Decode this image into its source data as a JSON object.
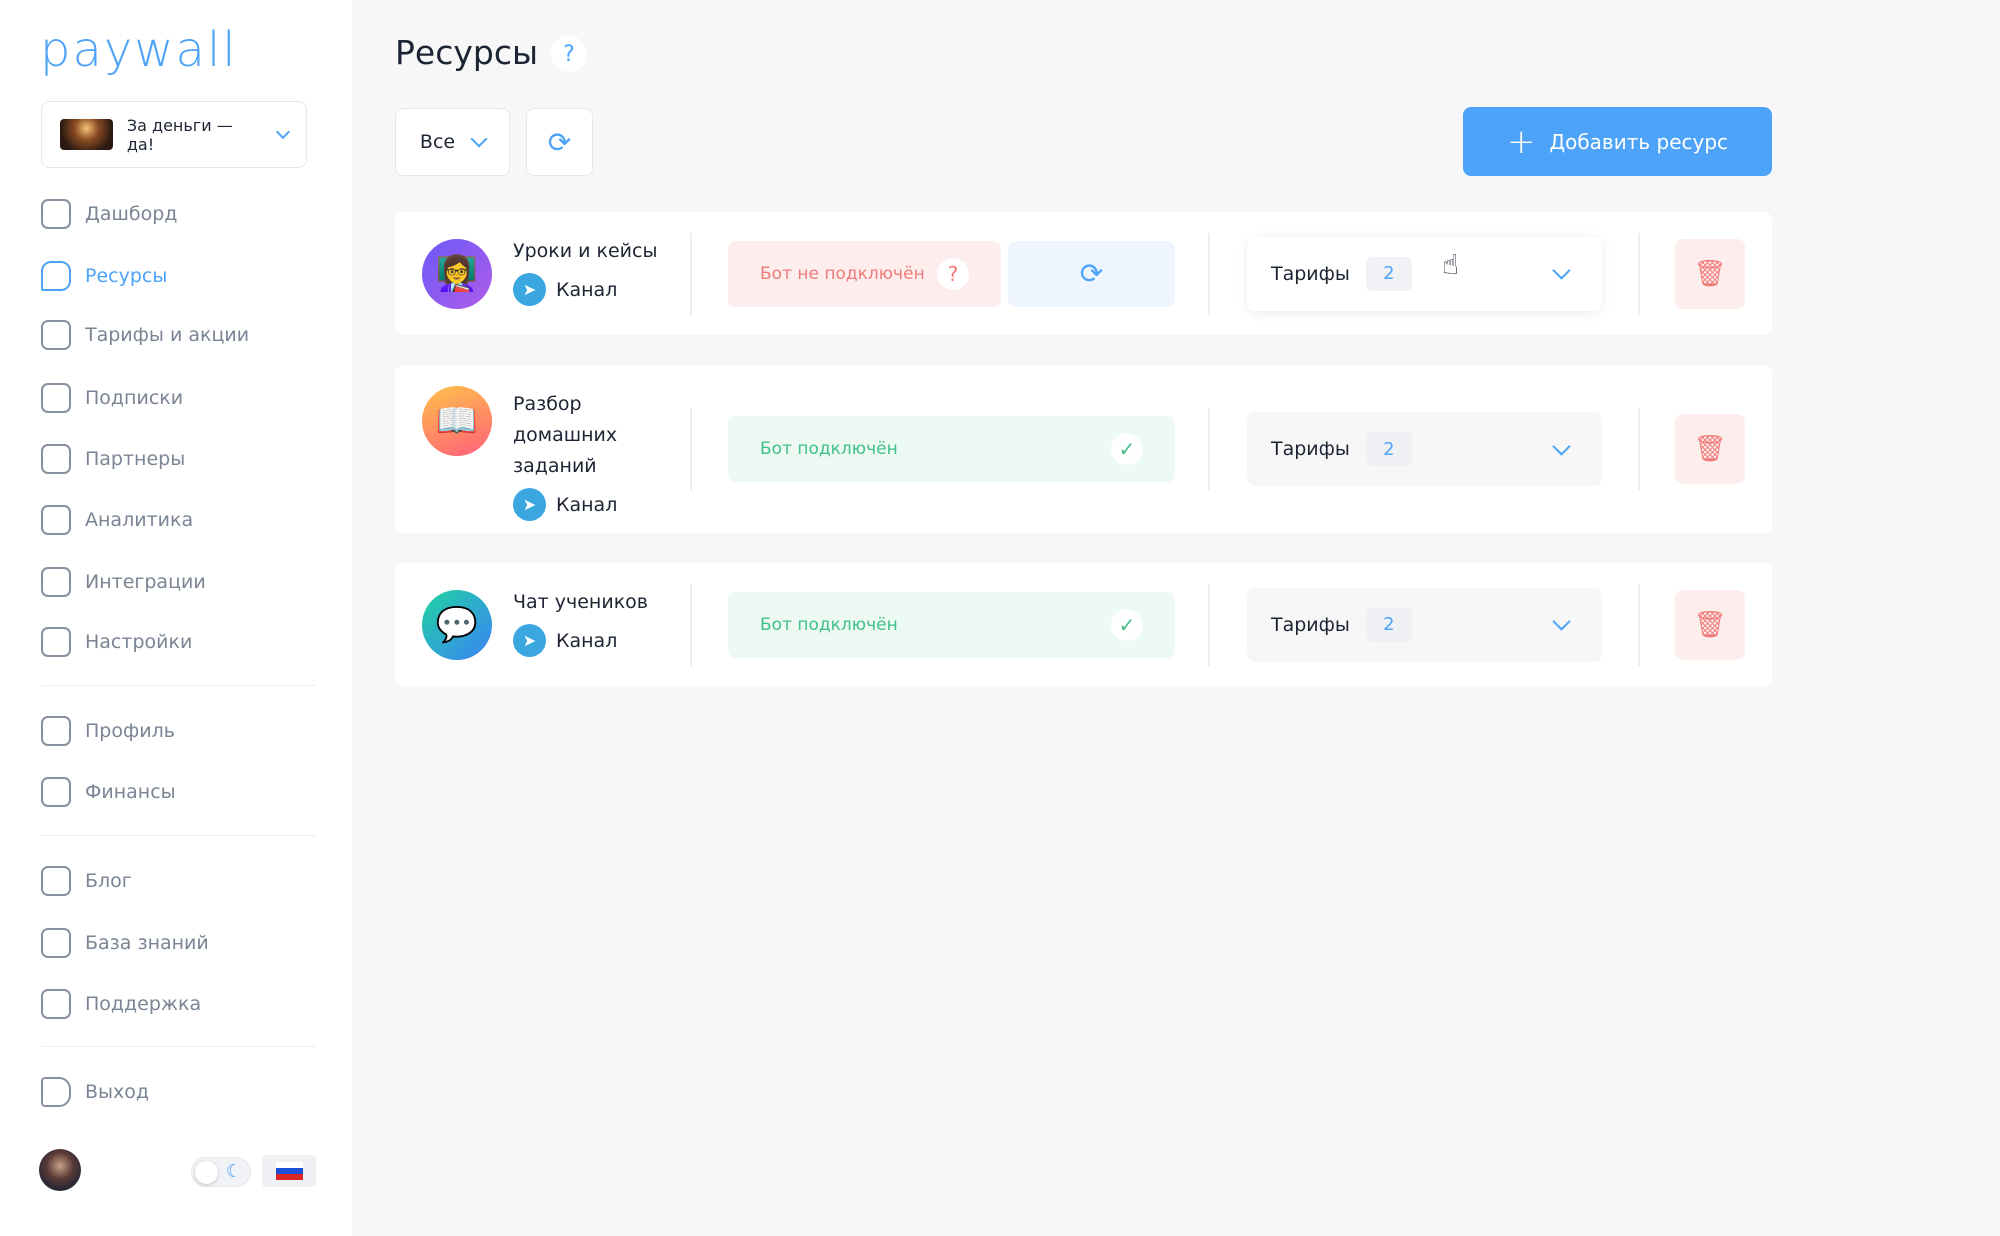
{
  "sidebar": {
    "logo": "paywall",
    "project": {
      "name": "За деньги — да!"
    },
    "nav": [
      {
        "label": "Дашборд",
        "icon": "dashboard-icon",
        "active": false
      },
      {
        "label": "Ресурсы",
        "icon": "chat-icon",
        "active": true
      },
      {
        "label": "Тарифы и акции",
        "icon": "tariff-icon",
        "active": false
      },
      {
        "label": "Подписки",
        "icon": "user-check-icon",
        "active": false
      },
      {
        "label": "Партнеры",
        "icon": "briefcase-icon",
        "active": false
      },
      {
        "label": "Аналитика",
        "icon": "chart-icon",
        "active": false
      },
      {
        "label": "Интеграции",
        "icon": "puzzle-icon",
        "active": false
      },
      {
        "label": "Настройки",
        "icon": "gear-icon",
        "active": false
      }
    ],
    "nav2": [
      {
        "label": "Профиль",
        "icon": "profile-icon"
      },
      {
        "label": "Финансы",
        "icon": "wallet-icon"
      }
    ],
    "nav3": [
      {
        "label": "Блог",
        "icon": "blog-icon"
      },
      {
        "label": "База знаний",
        "icon": "graduation-icon"
      },
      {
        "label": "Поддержка",
        "icon": "headset-icon"
      }
    ],
    "logout": "Выход",
    "language": "ru"
  },
  "header": {
    "title": "Ресурсы",
    "help": "?"
  },
  "toolbar": {
    "filter": "Все",
    "add_label": "Добавить ресурс"
  },
  "accent": "#4da3f7",
  "resources": [
    {
      "name": "Уроки и кейсы",
      "type": "Канал",
      "emoji": "👩‍🏫",
      "status": "Бот не подключён",
      "connected": false,
      "tariffs_label": "Тарифы",
      "tariffs_count": "2"
    },
    {
      "name": "Разбор домашних заданий",
      "type": "Канал",
      "emoji": "📖",
      "status": "Бот подключён",
      "connected": true,
      "tariffs_label": "Тарифы",
      "tariffs_count": "2"
    },
    {
      "name": "Чат учеников",
      "type": "Канал",
      "emoji": "💬",
      "status": "Бот подключён",
      "connected": true,
      "tariffs_label": "Тарифы",
      "tariffs_count": "2"
    }
  ]
}
